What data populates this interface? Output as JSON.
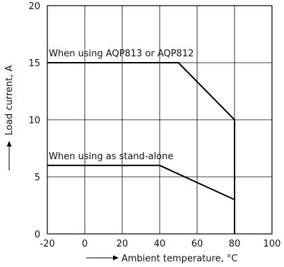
{
  "chart_data": {
    "type": "line",
    "xlabel": "Ambient temperature, °C",
    "ylabel": "Load current, A",
    "xlim": [
      -20,
      100
    ],
    "ylim": [
      0,
      20
    ],
    "xticks": [
      -20,
      0,
      20,
      40,
      60,
      80,
      100
    ],
    "yticks": [
      0,
      5,
      10,
      15,
      20
    ],
    "xtick_labels": [
      "-20",
      "0",
      "20",
      "40",
      "60",
      "80",
      "100"
    ],
    "ytick_labels": [
      "0",
      "5",
      "10",
      "15",
      "20"
    ],
    "grid": true,
    "series": [
      {
        "name": "When using AQP813 or AQP812",
        "x": [
          -20,
          50,
          80,
          80
        ],
        "y": [
          15,
          15,
          10,
          0
        ]
      },
      {
        "name": "When using as stand-alone",
        "x": [
          -20,
          40,
          80,
          80
        ],
        "y": [
          6,
          6,
          3,
          0
        ]
      }
    ],
    "colors": {
      "line": "#000000",
      "grid": "#000000",
      "axis": "#000000"
    }
  }
}
